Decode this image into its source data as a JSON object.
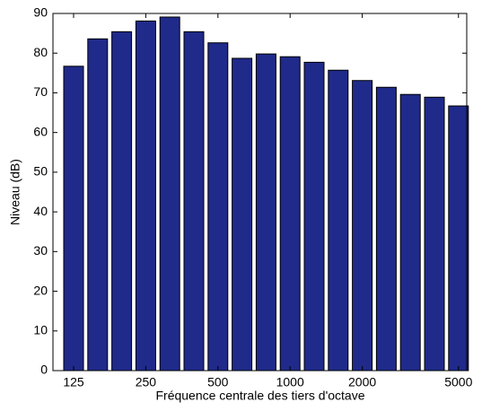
{
  "chart_data": {
    "type": "bar",
    "xlabel": "Fréquence centrale des tiers d'octave",
    "ylabel": "Niveau (dB)",
    "categories": [
      "125",
      null,
      null,
      "250",
      null,
      null,
      "500",
      null,
      null,
      "1000",
      null,
      null,
      "2000",
      null,
      null,
      null,
      "5000"
    ],
    "values": [
      76.7,
      83.6,
      85.4,
      88.1,
      89.1,
      85.4,
      82.6,
      78.7,
      79.8,
      79.1,
      77.7,
      75.7,
      73.1,
      71.4,
      69.6,
      68.9,
      66.7
    ],
    "color": "#1f2a8a",
    "ylim": [
      0,
      90
    ],
    "yticks": [
      0,
      10,
      20,
      30,
      40,
      50,
      60,
      70,
      80,
      90
    ]
  }
}
